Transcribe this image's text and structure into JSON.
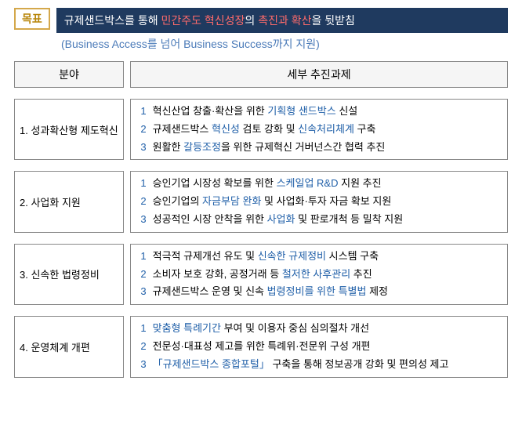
{
  "goal": {
    "label": "목표",
    "banner_p1": "규제샌드박스를 통해 ",
    "banner_p2": "민간주도 혁신성장",
    "banner_p3": "의 ",
    "banner_p4": "촉진과 확산",
    "banner_p5": "을 뒷받침",
    "subtitle": "(Business Access를 넘어 Business Success까지 지원)"
  },
  "headers": {
    "left": "분야",
    "right": "세부 추진과제"
  },
  "sections": [
    {
      "label": "1. 성과확산형 제도혁신",
      "items": [
        {
          "num": "1",
          "parts": [
            [
              "",
              "혁신산업 창출·확산을 위한 "
            ],
            [
              "hl",
              "기획형 샌드박스"
            ],
            [
              "",
              " 신설"
            ]
          ]
        },
        {
          "num": "2",
          "parts": [
            [
              "",
              "규제샌드박스 "
            ],
            [
              "hl",
              "혁신성"
            ],
            [
              "",
              " 검토 강화 및 "
            ],
            [
              "hl",
              "신속처리체계"
            ],
            [
              "",
              " 구축"
            ]
          ]
        },
        {
          "num": "3",
          "parts": [
            [
              "",
              "원활한 "
            ],
            [
              "hl",
              "갈등조정"
            ],
            [
              "",
              "을 위한 규제혁신 거버넌스간 협력 추진"
            ]
          ]
        }
      ]
    },
    {
      "label": "2. 사업화 지원",
      "items": [
        {
          "num": "1",
          "parts": [
            [
              "",
              "승인기업 시장성 확보를 위한 "
            ],
            [
              "hl",
              "스케일업 R&D"
            ],
            [
              "",
              " 지원 추진"
            ]
          ]
        },
        {
          "num": "2",
          "parts": [
            [
              "",
              "승인기업의 "
            ],
            [
              "hl",
              "자금부담 완화"
            ],
            [
              "",
              " 및 사업화·투자 자금 확보 지원"
            ]
          ]
        },
        {
          "num": "3",
          "parts": [
            [
              "",
              "성공적인 시장 안착을 위한 "
            ],
            [
              "hl",
              "사업화"
            ],
            [
              "",
              " 및 판로개척 등 밀착 지원"
            ]
          ]
        }
      ]
    },
    {
      "label": "3. 신속한 법령정비",
      "items": [
        {
          "num": "1",
          "parts": [
            [
              "",
              "적극적 규제개선 유도 및 "
            ],
            [
              "hl",
              "신속한 규제정비"
            ],
            [
              "",
              " 시스템 구축"
            ]
          ]
        },
        {
          "num": "2",
          "parts": [
            [
              "",
              "소비자 보호 강화, 공정거래 등 "
            ],
            [
              "hl",
              "철저한 사후관리"
            ],
            [
              "",
              " 추진"
            ]
          ]
        },
        {
          "num": "3",
          "parts": [
            [
              "",
              "규제샌드박스 운영 및 신속 "
            ],
            [
              "hl",
              "법령정비를 위한 특별법"
            ],
            [
              "",
              " 제정"
            ]
          ]
        }
      ]
    },
    {
      "label": "4. 운영체계 개편",
      "items": [
        {
          "num": "1",
          "parts": [
            [
              "hl",
              "맞춤형 특례기간"
            ],
            [
              "",
              " 부여 및 이용자 중심 심의절차 개선"
            ]
          ]
        },
        {
          "num": "2",
          "parts": [
            [
              "",
              "전문성·대표성 제고를 위한 특례위·전문위 구성 개편"
            ]
          ]
        },
        {
          "num": "3",
          "parts": [
            [
              "hl",
              "「규제샌드박스 종합포털」"
            ],
            [
              "",
              " 구축을 통해 정보공개 강화 및 편의성 제고"
            ]
          ]
        }
      ]
    }
  ]
}
